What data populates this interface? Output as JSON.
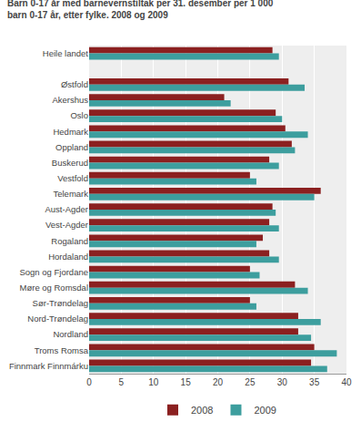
{
  "chart_data": {
    "type": "bar",
    "orientation": "horizontal",
    "title": "Barn 0-17 år med barnevernstiltak per 31. desember per 1 000",
    "subtitle": "barn 0-17 år, etter fylke. 2008 og 2009",
    "categories": [
      "Heile landet",
      null,
      "Østfold",
      "Akershus",
      "Oslo",
      "Hedmark",
      "Oppland",
      "Buskerud",
      "Vestfold",
      "Telemark",
      "Aust-Agder",
      "Vest-Agder",
      "Rogaland",
      "Hordaland",
      "Sogn og Fjordane",
      "Møre og Romsdal",
      "Sør-Trøndelag",
      "Nord-Trøndelag",
      "Nordland",
      "Troms Romsa",
      "Finnmark Finnmárku"
    ],
    "series": [
      {
        "name": "2008",
        "color": "#8B2020",
        "values": [
          28.5,
          null,
          31.0,
          21.0,
          29.0,
          30.5,
          31.5,
          28.0,
          25.0,
          36.0,
          28.5,
          28.0,
          27.0,
          28.0,
          25.0,
          32.0,
          25.0,
          32.5,
          32.5,
          35.0,
          34.5
        ]
      },
      {
        "name": "2009",
        "color": "#3D9E9E",
        "values": [
          29.5,
          null,
          33.5,
          22.0,
          30.0,
          34.0,
          32.0,
          29.5,
          26.0,
          35.0,
          29.0,
          29.5,
          26.0,
          29.5,
          26.5,
          34.0,
          26.0,
          36.0,
          34.5,
          38.5,
          37.0
        ]
      }
    ],
    "xlim": [
      0,
      40
    ],
    "xticks": [
      0,
      5,
      10,
      15,
      20,
      25,
      30,
      35,
      40
    ],
    "grid": true,
    "legend": "bottom"
  }
}
